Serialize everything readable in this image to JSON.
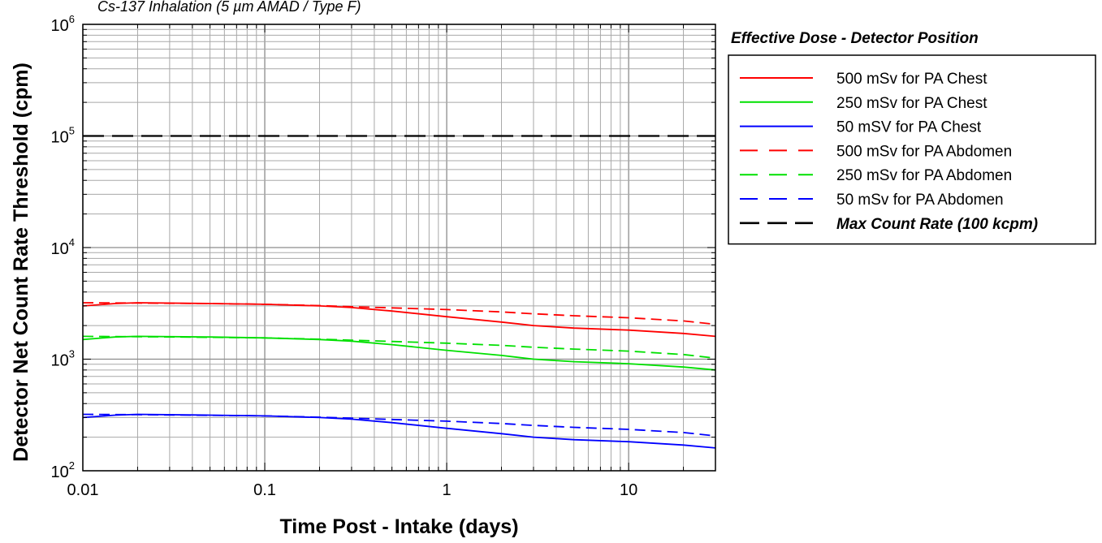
{
  "chart_data": {
    "type": "line",
    "subtitle": "Cs-137 Inhalation (5 µm AMAD / Type F)",
    "xlabel": "Time Post - Intake (days)",
    "ylabel": "Detector Net Count Rate Threshold (cpm)",
    "x_scale": "log",
    "y_scale": "log",
    "xlim": [
      0.01,
      30
    ],
    "ylim": [
      100,
      1000000
    ],
    "grid": true,
    "x_ticks": [
      {
        "value": 0.01,
        "label": "0.01"
      },
      {
        "value": 0.1,
        "label": "0.1"
      },
      {
        "value": 1,
        "label": "1"
      },
      {
        "value": 10,
        "label": "10"
      }
    ],
    "y_ticks": [
      {
        "value": 100,
        "base": "10",
        "exp": "2"
      },
      {
        "value": 1000,
        "base": "10",
        "exp": "3"
      },
      {
        "value": 10000,
        "base": "10",
        "exp": "4"
      },
      {
        "value": 100000,
        "base": "10",
        "exp": "5"
      },
      {
        "value": 1000000,
        "base": "10",
        "exp": "6"
      }
    ],
    "legend_title": "Effective Dose - Detector Position",
    "legend_position": "right",
    "series": [
      {
        "name": "500 mSv for PA Chest",
        "color": "#ff0000",
        "dash": "solid",
        "x": [
          0.01,
          0.015,
          0.02,
          0.05,
          0.1,
          0.2,
          0.3,
          0.5,
          1,
          2,
          3,
          5,
          10,
          20,
          30
        ],
        "y": [
          3000,
          3150,
          3200,
          3150,
          3100,
          3000,
          2900,
          2700,
          2400,
          2150,
          2000,
          1900,
          1820,
          1700,
          1600
        ]
      },
      {
        "name": "250 mSv for PA Chest",
        "color": "#00e000",
        "dash": "solid",
        "x": [
          0.01,
          0.015,
          0.02,
          0.05,
          0.1,
          0.2,
          0.3,
          0.5,
          1,
          2,
          3,
          5,
          10,
          20,
          30
        ],
        "y": [
          1500,
          1580,
          1600,
          1580,
          1550,
          1500,
          1450,
          1350,
          1200,
          1080,
          1000,
          950,
          910,
          850,
          800
        ]
      },
      {
        "name": "50 mSV for PA Chest",
        "color": "#0000ff",
        "dash": "solid",
        "x": [
          0.01,
          0.015,
          0.02,
          0.05,
          0.1,
          0.2,
          0.3,
          0.5,
          1,
          2,
          3,
          5,
          10,
          20,
          30
        ],
        "y": [
          300,
          315,
          320,
          315,
          310,
          300,
          290,
          270,
          240,
          215,
          200,
          190,
          182,
          170,
          160
        ]
      },
      {
        "name": "500 mSv for PA Abdomen",
        "color": "#ff0000",
        "dash": "dashed",
        "x": [
          0.01,
          0.02,
          0.05,
          0.1,
          0.2,
          0.3,
          0.5,
          1,
          2,
          3,
          5,
          10,
          20,
          30
        ],
        "y": [
          3200,
          3180,
          3150,
          3100,
          3020,
          2950,
          2880,
          2780,
          2650,
          2550,
          2450,
          2350,
          2200,
          2050
        ]
      },
      {
        "name": "250 mSv for PA Abdomen",
        "color": "#00e000",
        "dash": "dashed",
        "x": [
          0.01,
          0.02,
          0.05,
          0.1,
          0.2,
          0.3,
          0.5,
          1,
          2,
          3,
          5,
          10,
          20,
          30
        ],
        "y": [
          1600,
          1590,
          1570,
          1550,
          1510,
          1480,
          1440,
          1390,
          1330,
          1280,
          1230,
          1180,
          1100,
          1020
        ]
      },
      {
        "name": "50 mSv for PA Abdomen",
        "color": "#0000ff",
        "dash": "dashed",
        "x": [
          0.01,
          0.02,
          0.05,
          0.1,
          0.2,
          0.3,
          0.5,
          1,
          2,
          3,
          5,
          10,
          20,
          30
        ],
        "y": [
          320,
          318,
          314,
          310,
          302,
          296,
          288,
          278,
          265,
          255,
          245,
          235,
          220,
          205
        ]
      },
      {
        "name": "Max Count Rate (100 kcpm)",
        "color": "#000000",
        "dash": "longdash",
        "x": [
          0.01,
          30
        ],
        "y": [
          100000,
          100000
        ]
      }
    ]
  }
}
